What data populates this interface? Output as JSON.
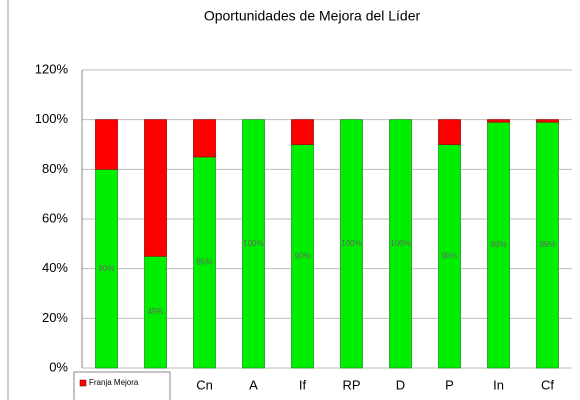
{
  "chart_data": {
    "type": "stacked_bar",
    "title": "Oportunidades de Mejora del Líder",
    "categories": [
      null,
      null,
      "Cn",
      "A",
      "If",
      "RP",
      "D",
      "P",
      "In",
      "Cf"
    ],
    "series": [
      {
        "name": null,
        "color": "#00ee00",
        "values": [
          80,
          45,
          85,
          100,
          90,
          100,
          100,
          90,
          99,
          99
        ],
        "value_labels": [
          "80%",
          "45%",
          "85%",
          "100%",
          "90%",
          "100%",
          "100%",
          "90%",
          "99%",
          "99%"
        ]
      },
      {
        "name": "Franja Mejora",
        "color": "#ff0000",
        "values": [
          20,
          55,
          15,
          0,
          10,
          0,
          0,
          10,
          1,
          1
        ]
      }
    ],
    "ylim": [
      0,
      120
    ],
    "yticks": [
      {
        "value": 0,
        "label": "0%"
      },
      {
        "value": 20,
        "label": "20%"
      },
      {
        "value": 40,
        "label": "40%"
      },
      {
        "value": 60,
        "label": "60%"
      },
      {
        "value": 80,
        "label": "80%"
      },
      {
        "value": 100,
        "label": "100%"
      },
      {
        "value": 120,
        "label": "120%"
      }
    ],
    "grid": true,
    "legend": "bottom-left"
  }
}
